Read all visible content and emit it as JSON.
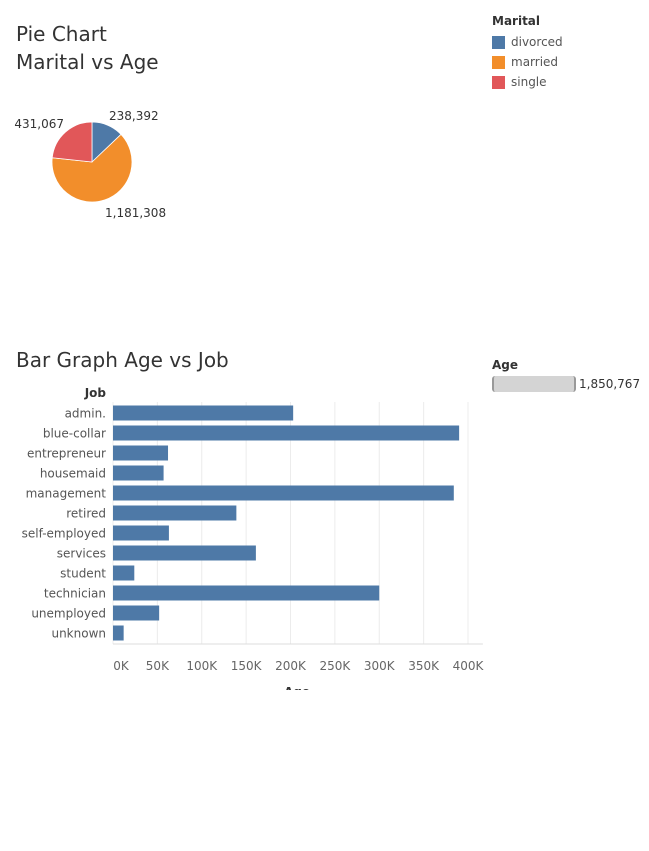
{
  "pie_title": "Pie Chart",
  "pie_subtitle": "Marital vs Age",
  "bar_title": "Bar Graph Age vs Job",
  "legend": {
    "title": "Marital",
    "items": [
      {
        "label": "divorced",
        "color": "#4e79a7"
      },
      {
        "label": "married",
        "color": "#f28e2b"
      },
      {
        "label": "single",
        "color": "#e15759"
      }
    ]
  },
  "age_legend": {
    "title": "Age",
    "value": "1,850,767"
  },
  "chart_data": [
    {
      "type": "pie",
      "categories": [
        "divorced",
        "married",
        "single"
      ],
      "values": [
        238392,
        1181308,
        431067
      ],
      "labels": [
        "238,392",
        "1,181,308",
        "431,067"
      ],
      "colors": [
        "#4e79a7",
        "#f28e2b",
        "#e15759"
      ]
    },
    {
      "type": "bar",
      "orientation": "horizontal",
      "categories": [
        "admin.",
        "blue-collar",
        "entrepreneur",
        "housemaid",
        "management",
        "retired",
        "self-employed",
        "services",
        "student",
        "technician",
        "unemployed",
        "unknown"
      ],
      "values": [
        203000,
        390000,
        62000,
        57000,
        384000,
        139000,
        63000,
        161000,
        24000,
        300000,
        52000,
        12000
      ],
      "xlabel": "Age",
      "ylabel": "Job",
      "xlim": [
        0,
        410000
      ],
      "xticks": [
        0,
        50000,
        100000,
        150000,
        200000,
        250000,
        300000,
        350000,
        400000
      ],
      "xtick_labels": [
        "0K",
        "50K",
        "100K",
        "150K",
        "200K",
        "250K",
        "300K",
        "350K",
        "400K"
      ],
      "color": "#4e79a7",
      "grid": true
    }
  ]
}
